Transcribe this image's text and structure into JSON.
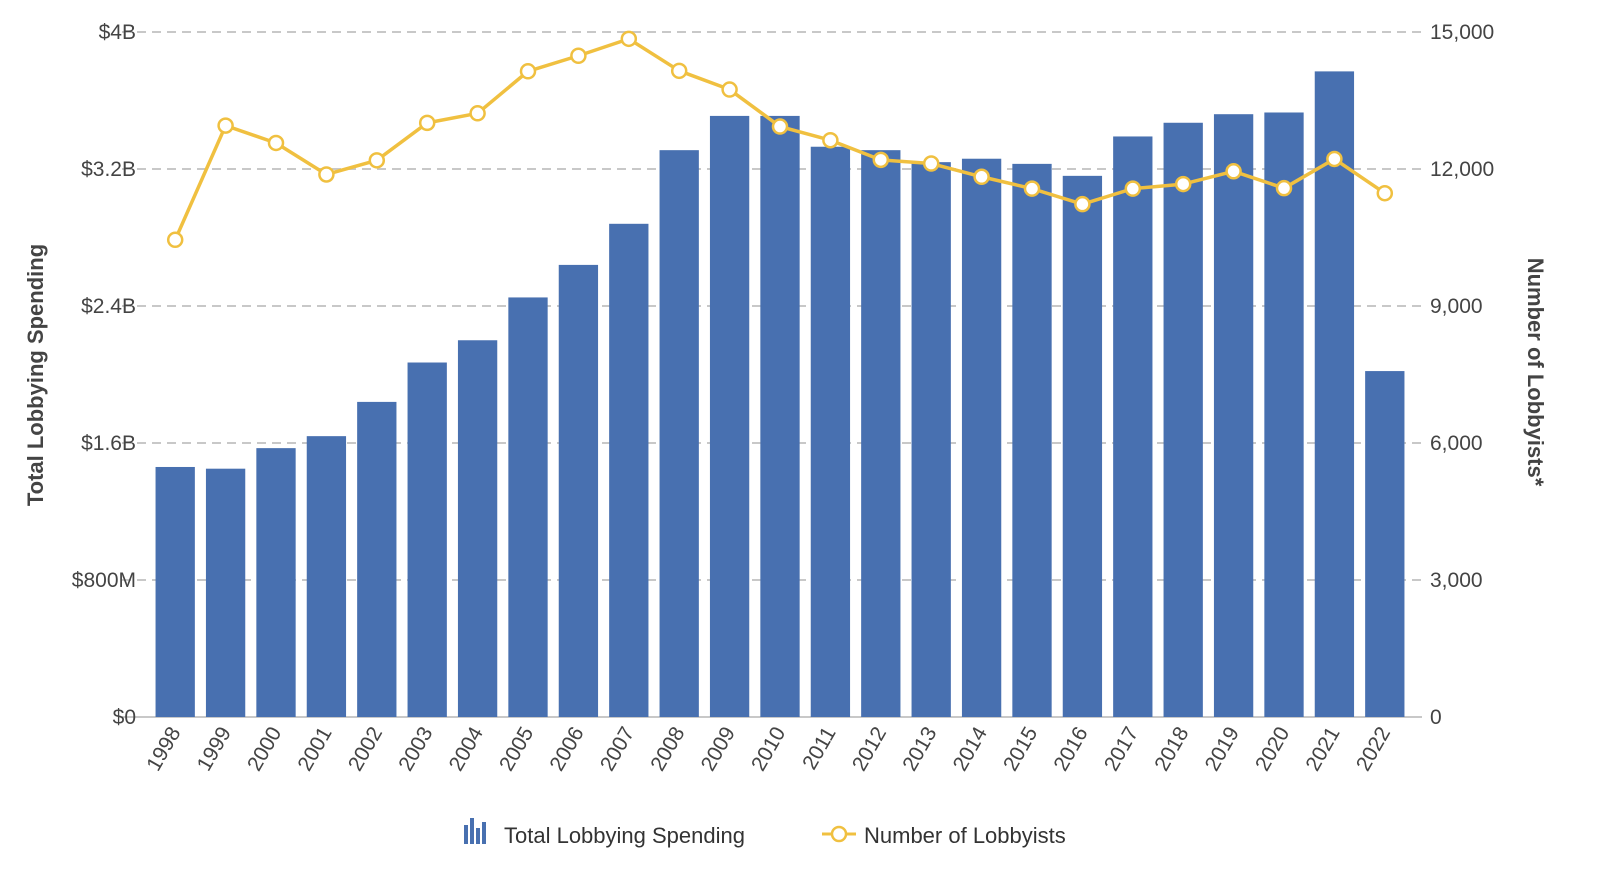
{
  "chart_data": {
    "type": "bar",
    "categories": [
      "1998",
      "1999",
      "2000",
      "2001",
      "2002",
      "2003",
      "2004",
      "2005",
      "2006",
      "2007",
      "2008",
      "2009",
      "2010",
      "2011",
      "2012",
      "2013",
      "2014",
      "2015",
      "2016",
      "2017",
      "2018",
      "2019",
      "2020",
      "2021",
      "2022"
    ],
    "series": [
      {
        "name": "Total Lobbying Spending",
        "type": "bar",
        "axis": "left",
        "color": "#4870b0",
        "values": [
          1.46,
          1.45,
          1.57,
          1.64,
          1.84,
          2.07,
          2.2,
          2.45,
          2.64,
          2.88,
          3.31,
          3.51,
          3.51,
          3.33,
          3.31,
          3.24,
          3.26,
          3.23,
          3.16,
          3.39,
          3.47,
          3.52,
          3.53,
          3.77,
          2.02
        ]
      },
      {
        "name": "Number of Lobbyists",
        "type": "line",
        "axis": "right",
        "color": "#f0c040",
        "values": [
          10450,
          12950,
          12570,
          11880,
          12190,
          13010,
          13220,
          14140,
          14480,
          14850,
          14150,
          13740,
          12930,
          12630,
          12200,
          12120,
          11830,
          11570,
          11230,
          11570,
          11670,
          11950,
          11580,
          12220,
          11470
        ]
      }
    ],
    "yAxisLeft": {
      "title": "Total Lobbying Spending",
      "min": 0,
      "max": 4,
      "ticks": [
        0,
        0.8,
        1.6,
        2.4,
        3.2,
        4
      ],
      "tick_labels": [
        "$0",
        "$800M",
        "$1.6B",
        "$2.4B",
        "$3.2B",
        "$4B"
      ]
    },
    "yAxisRight": {
      "title": "Number of Lobbyists*",
      "min": 0,
      "max": 15000,
      "ticks": [
        0,
        3000,
        6000,
        9000,
        12000,
        15000
      ],
      "tick_labels": [
        "0",
        "3,000",
        "6,000",
        "9,000",
        "12,000",
        "15,000"
      ]
    },
    "grid": true,
    "legend": {
      "position": "bottom-center",
      "items": [
        "Total Lobbying Spending",
        "Number of Lobbyists"
      ]
    },
    "colors": {
      "bar": "#4870b0",
      "line": "#f0c040",
      "grid": "#c8c8c8",
      "text": "#444444"
    }
  }
}
